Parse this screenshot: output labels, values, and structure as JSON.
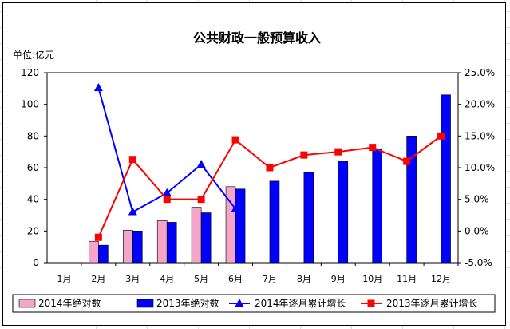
{
  "chart_data": {
    "type": "bar",
    "title": "公共财政一般预算收入",
    "unit_label": "单位:亿元",
    "categories": [
      "1月",
      "2月",
      "3月",
      "4月",
      "5月",
      "6月",
      "7月",
      "8月",
      "9月",
      "10月",
      "11月",
      "12月"
    ],
    "y_left": {
      "min": 0,
      "max": 120,
      "ticks": [
        "0",
        "20",
        "40",
        "60",
        "80",
        "100",
        "120"
      ]
    },
    "y_right": {
      "min": -5,
      "max": 25,
      "ticks": [
        "-5.0%",
        "0.0%",
        "5.0%",
        "10.0%",
        "15.0%",
        "20.0%",
        "25.0%"
      ]
    },
    "series": [
      {
        "name": "2014年绝对数",
        "type": "bar",
        "axis": "left",
        "color": "#f4a6c8",
        "values": [
          null,
          13.5,
          20.5,
          26.5,
          35,
          48,
          null,
          null,
          null,
          null,
          null,
          null
        ]
      },
      {
        "name": "2013年绝对数",
        "type": "bar",
        "axis": "left",
        "color": "#0000ff",
        "values": [
          null,
          11,
          20,
          25.5,
          31.5,
          46.5,
          51.5,
          57,
          64,
          72,
          80,
          106
        ]
      },
      {
        "name": "2014年逐月累计增长",
        "type": "line",
        "axis": "right",
        "color": "#0000ff",
        "marker": "triangle",
        "values": [
          null,
          22.6,
          3,
          6,
          10.5,
          3.5,
          null,
          null,
          null,
          null,
          null,
          null
        ]
      },
      {
        "name": "2013年逐月累计增长",
        "type": "line",
        "axis": "right",
        "color": "#ff0000",
        "marker": "square",
        "values": [
          null,
          -1,
          11.3,
          5,
          5,
          14.4,
          10,
          12,
          12.5,
          13.2,
          11,
          15
        ]
      }
    ],
    "legend": "bottom",
    "grid": false
  }
}
